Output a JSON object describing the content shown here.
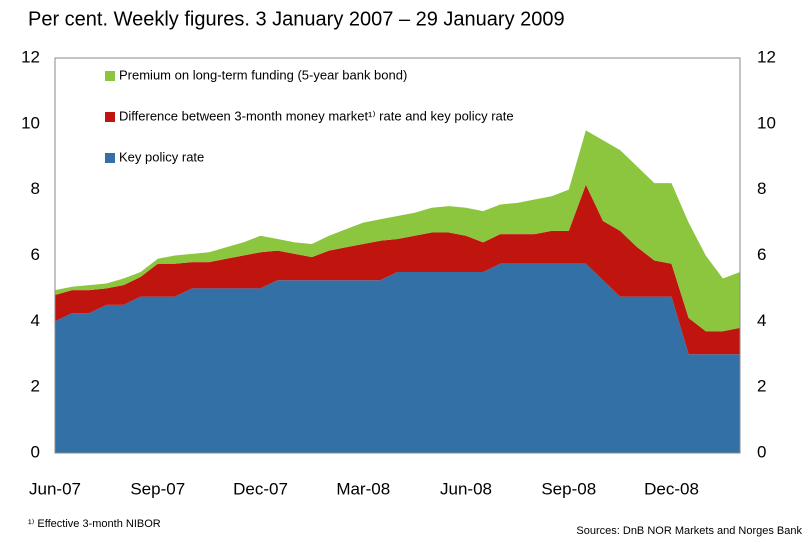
{
  "chart_data": {
    "type": "stacked-area",
    "title": "Per cent. Weekly figures. 3 January 2007 – 29 January 2009",
    "categories": [
      "Jun-07",
      null,
      null,
      null,
      null,
      null,
      "Sep-07",
      null,
      null,
      null,
      null,
      null,
      "Dec-07",
      null,
      null,
      null,
      null,
      null,
      "Mar-08",
      null,
      null,
      null,
      null,
      null,
      "Jun-08",
      null,
      null,
      null,
      null,
      null,
      "Sep-08",
      null,
      null,
      null,
      null,
      null,
      "Dec-08",
      null,
      null,
      null,
      null
    ],
    "series": [
      {
        "name": "Key policy rate",
        "color": "#3270a5",
        "values": [
          4.0,
          4.25,
          4.25,
          4.5,
          4.5,
          4.75,
          4.75,
          4.75,
          5.0,
          5.0,
          5.0,
          5.0,
          5.0,
          5.25,
          5.25,
          5.25,
          5.25,
          5.25,
          5.25,
          5.25,
          5.5,
          5.5,
          5.5,
          5.5,
          5.5,
          5.5,
          5.75,
          5.75,
          5.75,
          5.75,
          5.75,
          5.75,
          5.25,
          4.75,
          4.75,
          4.75,
          4.75,
          3.0,
          3.0,
          3.0,
          3.0
        ]
      },
      {
        "name": "Difference between 3-month money market¹⁾ rate and key policy rate",
        "color": "#c0150f",
        "values": [
          0.8,
          0.7,
          0.7,
          0.5,
          0.6,
          0.6,
          1.0,
          1.0,
          0.8,
          0.8,
          0.9,
          1.0,
          1.1,
          0.9,
          0.8,
          0.7,
          0.9,
          1.0,
          1.1,
          1.2,
          1.0,
          1.1,
          1.2,
          1.2,
          1.1,
          0.9,
          0.9,
          0.9,
          0.9,
          1.0,
          1.0,
          2.4,
          1.8,
          2.0,
          1.5,
          1.1,
          1.0,
          1.1,
          0.7,
          0.7,
          0.8
        ]
      },
      {
        "name": "Premium on long-term funding (5-year bank bond)",
        "color": "#8cc63e",
        "values": [
          0.15,
          0.1,
          0.15,
          0.15,
          0.2,
          0.15,
          0.15,
          0.25,
          0.25,
          0.3,
          0.35,
          0.4,
          0.5,
          0.35,
          0.35,
          0.4,
          0.45,
          0.55,
          0.65,
          0.65,
          0.7,
          0.7,
          0.75,
          0.8,
          0.85,
          0.95,
          0.9,
          0.95,
          1.05,
          1.05,
          1.25,
          1.65,
          2.45,
          2.45,
          2.45,
          2.35,
          2.45,
          2.9,
          2.3,
          1.6,
          1.7
        ]
      }
    ],
    "ylim": [
      0,
      12
    ],
    "yticks": [
      0,
      2,
      4,
      6,
      8,
      10,
      12
    ],
    "y2lim": [
      0,
      12
    ],
    "y2ticks": [
      0,
      2,
      4,
      6,
      8,
      10,
      12
    ],
    "footnote": "¹⁾ Effective 3-month NIBOR",
    "source": "Sources: DnB NOR Markets and Norges Bank"
  }
}
